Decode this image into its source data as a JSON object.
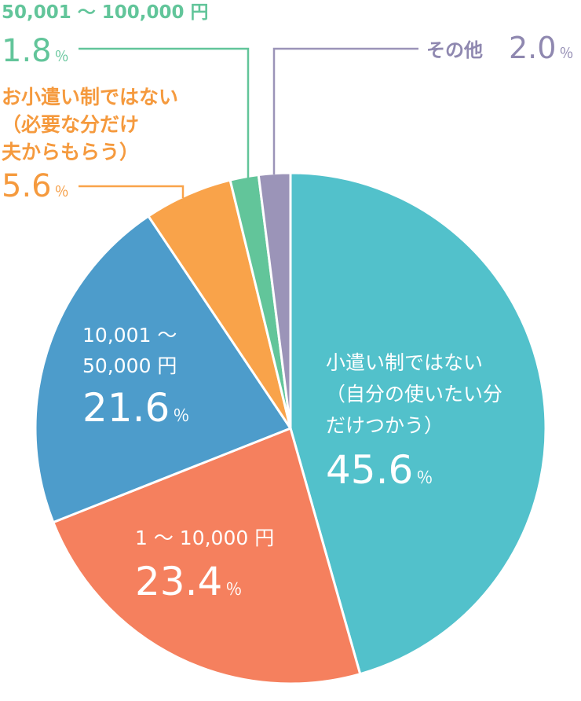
{
  "chart_data": {
    "type": "pie",
    "start_angle_deg": 0,
    "direction": "clockwise",
    "slices": [
      {
        "id": "no-allowance-self",
        "label_lines": [
          "小遣い制ではない",
          "（自分の使いたい分",
          "だけつかう）"
        ],
        "value": 45.6,
        "value_text": "45.6",
        "unit": "％",
        "color": "#52c1cb",
        "label_color": "#ffffff"
      },
      {
        "id": "1-10000",
        "label_lines": [
          "1 ～ 10,000 円"
        ],
        "value": 23.4,
        "value_text": "23.4",
        "unit": "％",
        "color": "#f5805e",
        "label_color": "#ffffff"
      },
      {
        "id": "10001-50000",
        "label_lines": [
          "10,001 ～",
          "50,000 円"
        ],
        "value": 21.6,
        "value_text": "21.6",
        "unit": "％",
        "color": "#4d9ccb",
        "label_color": "#ffffff"
      },
      {
        "id": "no-allowance-husband",
        "label_lines": [
          "お小遣い制ではない",
          "（必要な分だけ",
          "夫からもらう）"
        ],
        "value": 5.6,
        "value_text": "5.6",
        "unit": "％",
        "color": "#f9a34a",
        "label_color": "#f59a3e"
      },
      {
        "id": "50001-100000",
        "label_lines": [
          "50,001 ～ 100,000 円"
        ],
        "value": 1.8,
        "value_text": "1.8",
        "unit": "％",
        "color": "#62c59a",
        "label_color": "#62c59a"
      },
      {
        "id": "other",
        "label_lines": [
          "その他"
        ],
        "value": 2.0,
        "value_text": "2.0",
        "unit": "％",
        "color": "#9b94b8",
        "label_color": "#8f88b0"
      }
    ]
  }
}
